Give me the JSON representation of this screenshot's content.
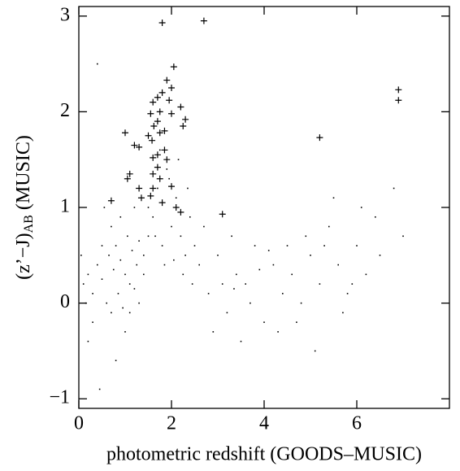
{
  "chart_data": {
    "type": "scatter",
    "xlabel": "photometric redshift (GOODS–MUSIC)",
    "ylabel_parts": [
      "(z’−J)",
      "AB",
      " (MUSIC)"
    ],
    "xlim": [
      0,
      8
    ],
    "ylim": [
      -1.1,
      3.1
    ],
    "xticks": [
      0,
      2,
      4,
      6
    ],
    "yticks": [
      {
        "value": -1,
        "label": "−1"
      },
      0,
      1,
      2,
      3
    ],
    "grid": false,
    "series": [
      {
        "marker": "dot",
        "color": "#000000",
        "x": [
          0.1,
          0.2,
          0.3,
          0.4,
          0.5,
          0.6,
          0.65,
          0.7,
          0.75,
          0.8,
          0.85,
          0.9,
          0.95,
          1.0,
          1.05,
          1.1,
          1.15,
          1.2,
          1.25,
          1.3,
          0.3,
          0.5,
          0.7,
          0.9,
          1.0,
          1.1,
          1.3,
          1.4,
          1.5,
          0.2,
          1.6,
          1.7,
          1.8,
          1.9,
          2.0,
          2.1,
          2.2,
          2.3,
          2.4,
          2.5,
          1.5,
          1.65,
          1.75,
          1.85,
          1.95,
          2.05,
          2.15,
          2.25,
          2.35,
          2.45,
          2.6,
          2.8,
          3.0,
          3.2,
          3.4,
          3.6,
          3.8,
          4.0,
          4.2,
          4.4,
          2.7,
          2.9,
          3.1,
          3.3,
          3.5,
          3.7,
          3.9,
          4.1,
          4.3,
          4.5,
          4.6,
          4.8,
          5.0,
          5.2,
          5.4,
          5.6,
          5.8,
          6.0,
          6.2,
          6.4,
          4.7,
          4.9,
          5.1,
          5.3,
          5.5,
          5.7,
          6.1,
          6.5,
          6.8,
          7.0,
          0.05,
          0.15,
          0.45,
          0.55,
          0.8,
          1.2,
          1.4,
          3.35,
          5.9,
          0.4
        ],
        "y": [
          0.2,
          0.3,
          0.1,
          0.4,
          0.25,
          0.0,
          0.5,
          -0.1,
          0.35,
          0.6,
          0.1,
          0.45,
          -0.05,
          0.3,
          0.7,
          0.2,
          0.55,
          0.15,
          0.4,
          0.65,
          -0.2,
          0.6,
          0.8,
          0.9,
          -0.3,
          -0.1,
          0.0,
          0.5,
          0.7,
          -0.4,
          0.9,
          1.2,
          0.6,
          1.4,
          0.8,
          1.1,
          0.7,
          0.5,
          0.9,
          0.6,
          1.0,
          0.7,
          1.6,
          0.4,
          1.3,
          0.45,
          1.5,
          0.3,
          1.2,
          0.2,
          0.4,
          0.1,
          0.5,
          -0.1,
          0.3,
          0.2,
          0.6,
          -0.2,
          0.4,
          0.1,
          0.8,
          -0.3,
          0.2,
          0.7,
          -0.4,
          0.0,
          0.35,
          0.55,
          -0.3,
          0.6,
          0.3,
          0.0,
          0.5,
          0.2,
          0.8,
          0.4,
          0.1,
          0.6,
          0.3,
          0.9,
          -0.2,
          0.7,
          -0.5,
          0.6,
          1.1,
          -0.1,
          1.0,
          0.5,
          1.2,
          0.7,
          0.5,
          0.0,
          -0.9,
          1.0,
          -0.6,
          1.0,
          0.3,
          0.15,
          0.2,
          2.5
        ]
      },
      {
        "marker": "plus",
        "color": "#000000",
        "x": [
          1.8,
          2.7,
          2.05,
          1.9,
          2.0,
          1.8,
          1.7,
          1.95,
          1.6,
          2.2,
          1.75,
          2.0,
          1.55,
          2.3,
          1.7,
          2.25,
          1.62,
          1.85,
          1.75,
          1.5,
          1.0,
          1.58,
          1.2,
          1.3,
          1.85,
          1.7,
          1.6,
          1.9,
          1.7,
          1.1,
          1.05,
          1.6,
          1.75,
          1.6,
          1.3,
          2.0,
          1.55,
          1.35,
          1.8,
          0.7,
          2.1,
          2.2,
          3.1,
          5.2,
          6.9,
          6.9
        ],
        "y": [
          2.93,
          2.95,
          2.47,
          2.33,
          2.25,
          2.2,
          2.15,
          2.12,
          2.1,
          2.05,
          2.0,
          1.98,
          1.98,
          1.92,
          1.9,
          1.85,
          1.85,
          1.8,
          1.78,
          1.75,
          1.78,
          1.7,
          1.65,
          1.63,
          1.6,
          1.55,
          1.52,
          1.5,
          1.42,
          1.35,
          1.3,
          1.35,
          1.3,
          1.2,
          1.2,
          1.22,
          1.12,
          1.1,
          1.05,
          1.07,
          1.0,
          0.95,
          0.93,
          1.73,
          2.23,
          2.12
        ]
      }
    ]
  }
}
